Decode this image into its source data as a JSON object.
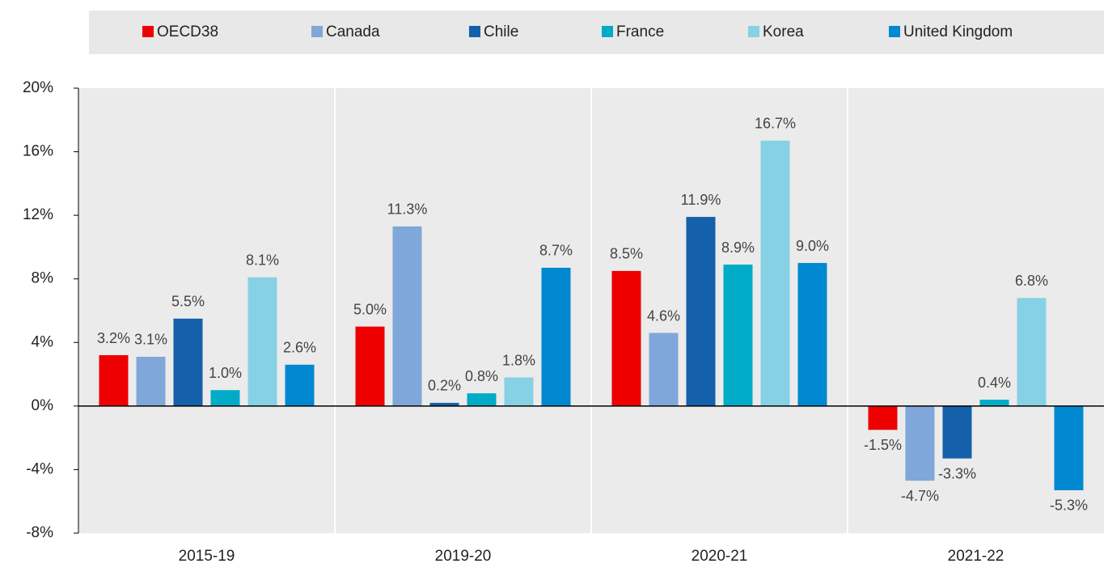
{
  "chart_data": {
    "type": "bar",
    "categories": [
      "2015-19",
      "2019-20",
      "2020-21",
      "2021-22"
    ],
    "series": [
      {
        "name": "OECD38",
        "color": "#ee0000",
        "values": [
          3.2,
          5.0,
          8.5,
          -1.5
        ],
        "value_labels": [
          "3.2%",
          "5.0%",
          "8.5%",
          "-1.5%"
        ]
      },
      {
        "name": "Canada",
        "color": "#7fa7d9",
        "values": [
          3.1,
          11.3,
          4.6,
          -4.7
        ],
        "value_labels": [
          "3.1%",
          "11.3%",
          "4.6%",
          "-4.7%"
        ]
      },
      {
        "name": "Chile",
        "color": "#1460aa",
        "values": [
          5.5,
          0.2,
          11.9,
          -3.3
        ],
        "value_labels": [
          "5.5%",
          "0.2%",
          "11.9%",
          "-3.3%"
        ]
      },
      {
        "name": "France",
        "color": "#00abc8",
        "values": [
          1.0,
          0.8,
          8.9,
          0.4
        ],
        "value_labels": [
          "1.0%",
          "0.8%",
          "8.9%",
          "0.4%"
        ]
      },
      {
        "name": "Korea",
        "color": "#86d1e4",
        "values": [
          8.1,
          1.8,
          16.7,
          6.8
        ],
        "value_labels": [
          "8.1%",
          "1.8%",
          "16.7%",
          "6.8%"
        ]
      },
      {
        "name": "United Kingdom",
        "color": "#0088d1",
        "values": [
          2.6,
          8.7,
          9.0,
          -5.3
        ],
        "value_labels": [
          "2.6%",
          "8.7%",
          "9.0%",
          "-5.3%"
        ]
      }
    ],
    "ylim": [
      -8,
      20
    ],
    "yticks": [
      {
        "value": -8,
        "label": "-8%"
      },
      {
        "value": -4,
        "label": "-4%"
      },
      {
        "value": 0,
        "label": "0%"
      },
      {
        "value": 4,
        "label": "4%"
      },
      {
        "value": 8,
        "label": "8%"
      },
      {
        "value": 12,
        "label": "12%"
      },
      {
        "value": 16,
        "label": "16%"
      },
      {
        "value": 20,
        "label": "20%"
      }
    ],
    "legend": "top"
  }
}
